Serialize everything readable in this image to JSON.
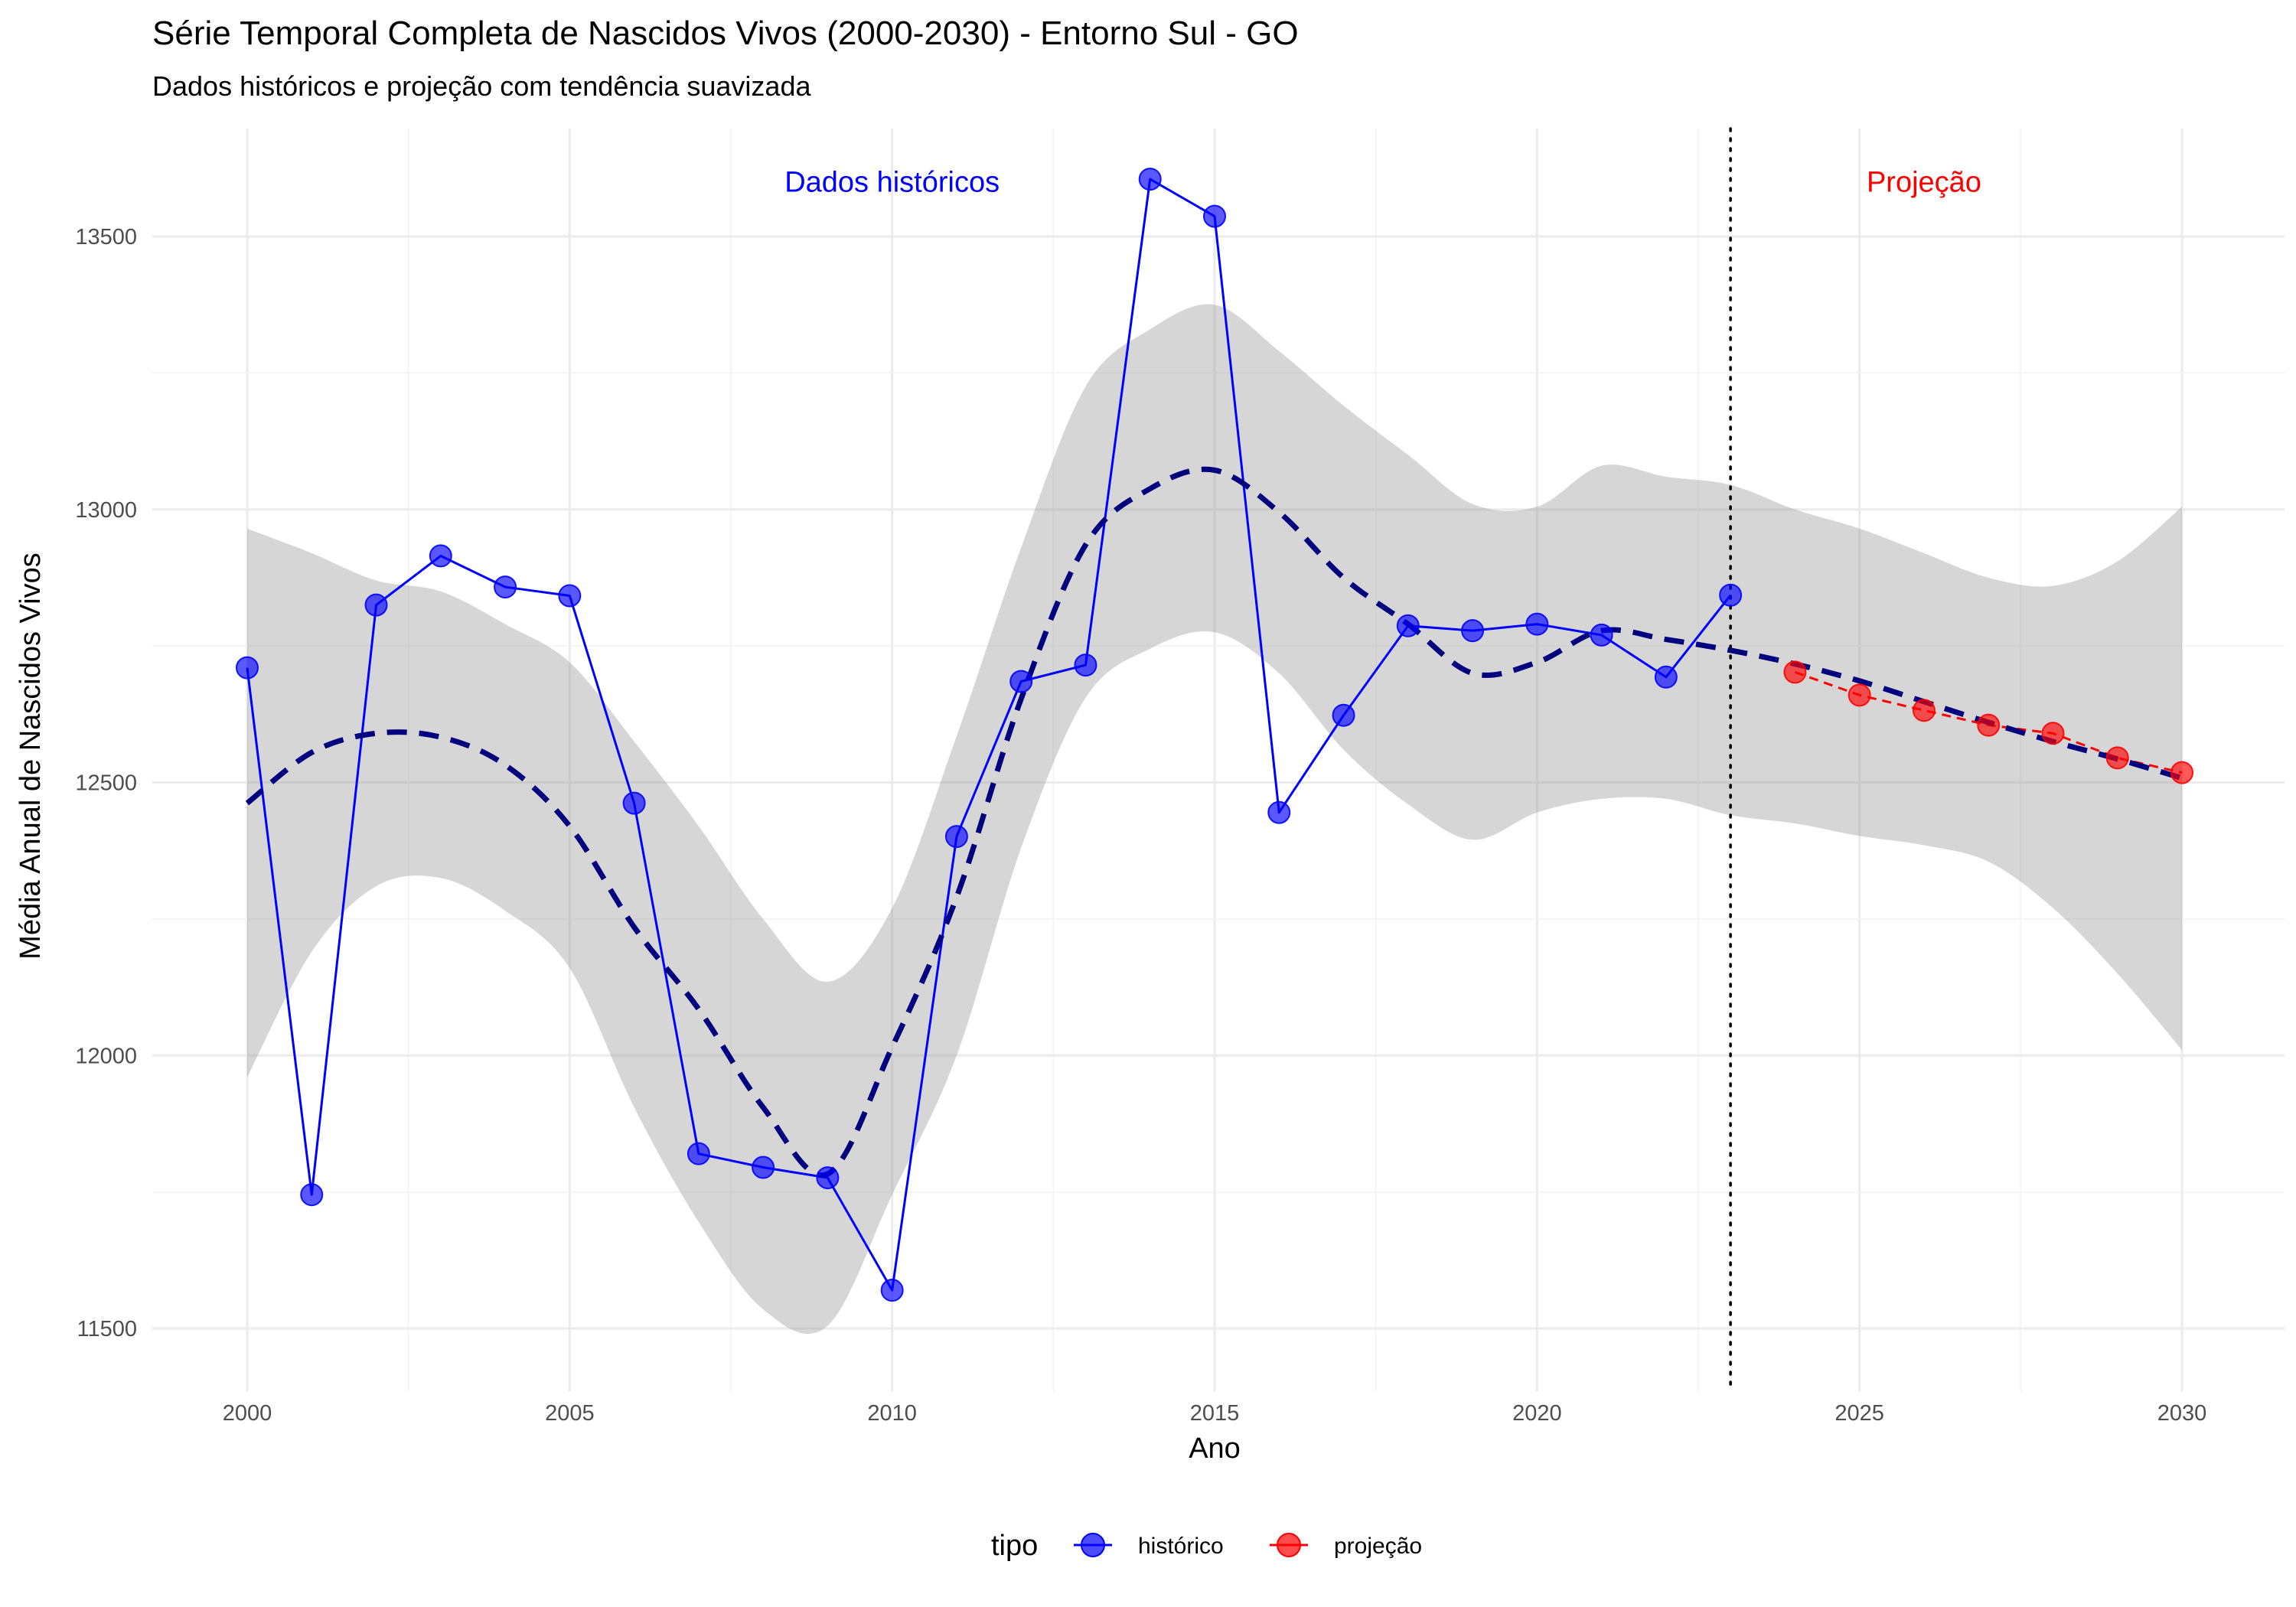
{
  "chart_data": {
    "type": "line",
    "title": "Série Temporal Completa de Nascidos Vivos (2000-2030) -  Entorno Sul - GO",
    "subtitle": "Dados históricos e projeção com tendência suavizada",
    "xlabel": "Ano",
    "ylabel": "Média Anual de Nascidos Vivos",
    "xlim": [
      1998.5,
      2031.5
    ],
    "ylim": [
      11420,
      13800
    ],
    "x_ticks": [
      2000,
      2005,
      2010,
      2015,
      2020,
      2025,
      2030
    ],
    "y_ticks": [
      11500,
      12000,
      12500,
      13000,
      13500
    ],
    "grid": true,
    "legend": {
      "title": "tipo",
      "position": "bottom",
      "entries": [
        {
          "label": "histórico",
          "color": "#0000ff"
        },
        {
          "label": "projeção",
          "color": "#ff0000"
        }
      ]
    },
    "annotations": [
      {
        "text": "Dados históricos",
        "x": 2010,
        "y": 13600,
        "color": "#0000ff"
      },
      {
        "text": "Projeção",
        "x": 2026,
        "y": 13600,
        "color": "#ff0000"
      }
    ],
    "divider_x": 2023,
    "series": [
      {
        "name": "histórico",
        "color": "#0000ff",
        "x": [
          2000,
          2001,
          2002,
          2003,
          2004,
          2005,
          2006,
          2007,
          2008,
          2009,
          2010,
          2011,
          2012,
          2013,
          2014,
          2015,
          2016,
          2017,
          2018,
          2019,
          2020,
          2021,
          2022,
          2023
        ],
        "y": [
          12710,
          11745,
          12825,
          12915,
          12858,
          12842,
          12462,
          11820,
          11795,
          11776,
          11570,
          12401,
          12685,
          12715,
          13605,
          13537,
          12445,
          12623,
          12787,
          12778,
          12790,
          12770,
          12693,
          12843
        ]
      },
      {
        "name": "projeção",
        "color": "#ff0000",
        "x": [
          2024,
          2025,
          2026,
          2027,
          2028,
          2029,
          2030
        ],
        "y": [
          12702,
          12660,
          12632,
          12605,
          12590,
          12545,
          12518
        ]
      }
    ],
    "trend": {
      "color": "#00007f",
      "x": [
        2000,
        2001,
        2002,
        2003,
        2004,
        2005,
        2006,
        2007,
        2008,
        2009,
        2010,
        2011,
        2012,
        2013,
        2014,
        2015,
        2016,
        2017,
        2018,
        2019,
        2020,
        2021,
        2022,
        2023,
        2024,
        2025,
        2026,
        2027,
        2028,
        2029,
        2030
      ],
      "y": [
        12462,
        12555,
        12590,
        12583,
        12532,
        12420,
        12235,
        12085,
        11905,
        11783,
        12015,
        12290,
        12653,
        12935,
        13038,
        13072,
        12995,
        12875,
        12790,
        12700,
        12720,
        12778,
        12762,
        12742,
        12717,
        12686,
        12648,
        12610,
        12575,
        12543,
        12508
      ]
    },
    "confidence_band": {
      "x": [
        2000,
        2001,
        2002,
        2003,
        2004,
        2005,
        2006,
        2007,
        2008,
        2009,
        2010,
        2011,
        2012,
        2013,
        2014,
        2015,
        2016,
        2017,
        2018,
        2019,
        2020,
        2021,
        2022,
        2023,
        2024,
        2025,
        2026,
        2027,
        2028,
        2029,
        2030
      ],
      "lower": [
        11960,
        12190,
        12310,
        12325,
        12265,
        12160,
        11905,
        11695,
        11535,
        11505,
        11745,
        12000,
        12380,
        12655,
        12745,
        12775,
        12700,
        12560,
        12460,
        12395,
        12445,
        12470,
        12470,
        12440,
        12425,
        12402,
        12385,
        12355,
        12270,
        12150,
        12010
      ],
      "upper": [
        12965,
        12920,
        12870,
        12850,
        12790,
        12720,
        12575,
        12420,
        12250,
        12135,
        12270,
        12585,
        12930,
        13225,
        13330,
        13375,
        13290,
        13190,
        13100,
        13010,
        13005,
        13080,
        13060,
        13045,
        13000,
        12965,
        12920,
        12875,
        12860,
        12905,
        13005
      ]
    }
  }
}
